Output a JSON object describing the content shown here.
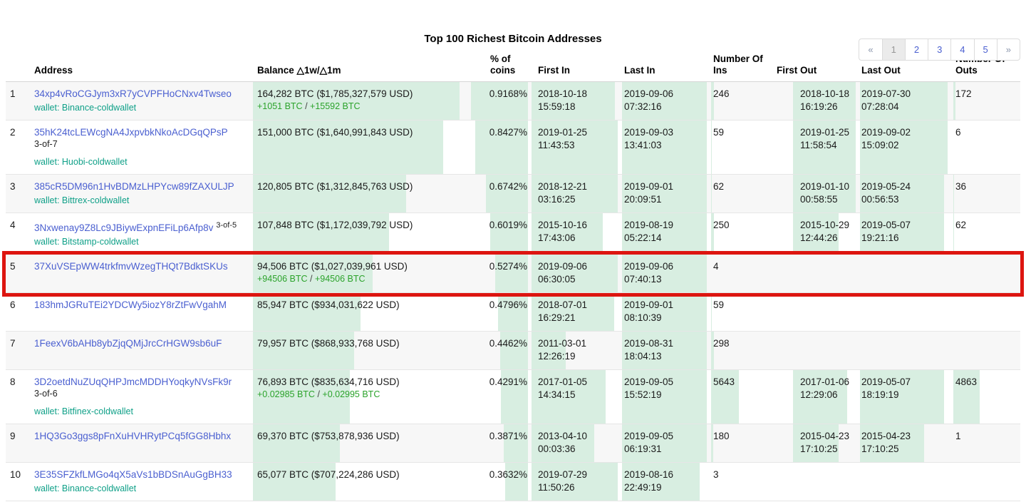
{
  "title": "Top 100 Richest Bitcoin Addresses",
  "labels": {
    "change_separator": " / "
  },
  "colors": {
    "link": "#4a5fd0",
    "teal": "#0fa088",
    "greentxt": "#2ba32b",
    "bar": "#d8eee1",
    "red": "#dd1510",
    "stripe": "#f7f7f7",
    "rowborder": "#e6e6e6",
    "headborder": "#d6d6d6",
    "pag-border": "#dcdcdc",
    "pag-active-bg": "#ebebeb",
    "pag-active-fg": "#969696",
    "pag-muted": "#8b97ad",
    "text": "#1a1a1a"
  },
  "pagination": {
    "items": [
      {
        "label": "«",
        "state": "muted"
      },
      {
        "label": "1",
        "state": "active"
      },
      {
        "label": "2",
        "state": ""
      },
      {
        "label": "3",
        "state": ""
      },
      {
        "label": "4",
        "state": ""
      },
      {
        "label": "5",
        "state": ""
      },
      {
        "label": "»",
        "state": "muted"
      }
    ]
  },
  "table": {
    "columns": [
      {
        "key": "rank",
        "label": ""
      },
      {
        "key": "address",
        "label": "Address"
      },
      {
        "key": "balance",
        "label": "Balance △1w/△1m"
      },
      {
        "key": "pct",
        "label": "% of coins"
      },
      {
        "key": "first_in",
        "label": "First In"
      },
      {
        "key": "last_in",
        "label": "Last In"
      },
      {
        "key": "ins",
        "label": "Number Of Ins"
      },
      {
        "key": "first_out",
        "label": "First Out"
      },
      {
        "key": "last_out",
        "label": "Last Out"
      },
      {
        "key": "outs",
        "label": "Number Of Outs"
      }
    ]
  },
  "rows": [
    {
      "rank": "1",
      "address": "34xp4vRoCGJym3xR7yCVPFHoCNxv4Twseo",
      "wallet": "wallet: Binance-coldwallet",
      "balance": "164,282 BTC ($1,785,327,579 USD)",
      "change_week": "+1051 BTC",
      "change_month": "+15592 BTC",
      "pct": "0.9168%",
      "first_in": {
        "d": "2018-10-18",
        "t": "15:59:18"
      },
      "last_in": {
        "d": "2019-09-06",
        "t": "07:32:16"
      },
      "ins": "246",
      "first_out": {
        "d": "2018-10-18",
        "t": "16:19:26"
      },
      "last_out": {
        "d": "2019-07-30",
        "t": "07:28:04"
      },
      "outs": "172",
      "bars": {
        "balance": 1,
        "pct": 1,
        "first_in": 0.97,
        "last_in": 1,
        "ins": 0.05,
        "first_out": 1,
        "last_out": 1,
        "outs": 0.04
      }
    },
    {
      "rank": "2",
      "address": "35hK24tcLEWcgNA4JxpvbkNkoAcDGqQPsP",
      "multisig": "3-of-7",
      "wallet": "wallet: Huobi-coldwallet",
      "balance": "151,000 BTC ($1,640,991,843 USD)",
      "pct": "0.8427%",
      "first_in": {
        "d": "2019-01-25",
        "t": "11:43:53"
      },
      "last_in": {
        "d": "2019-09-03",
        "t": "13:41:03"
      },
      "ins": "59",
      "first_out": {
        "d": "2019-01-25",
        "t": "11:58:54"
      },
      "last_out": {
        "d": "2019-09-02",
        "t": "15:09:02"
      },
      "outs": "6",
      "bars": {
        "balance": 0.92,
        "pct": 0.92,
        "first_in": 1,
        "last_in": 1,
        "ins": 0.012,
        "first_out": 1,
        "last_out": 1,
        "outs": 0
      }
    },
    {
      "rank": "3",
      "address": "385cR5DM96n1HvBDMzLHPYcw89fZAXULJP",
      "wallet": "wallet: Bittrex-coldwallet",
      "balance": "120,805 BTC ($1,312,845,763 USD)",
      "pct": "0.6742%",
      "first_in": {
        "d": "2018-12-21",
        "t": "03:16:25"
      },
      "last_in": {
        "d": "2019-09-01",
        "t": "20:09:51"
      },
      "ins": "62",
      "first_out": {
        "d": "2019-01-10",
        "t": "00:58:55"
      },
      "last_out": {
        "d": "2019-05-24",
        "t": "00:56:53"
      },
      "outs": "36",
      "bars": {
        "balance": 0.74,
        "pct": 0.74,
        "first_in": 1,
        "last_in": 1,
        "ins": 0.013,
        "first_out": 1,
        "last_out": 0.96,
        "outs": 0.01
      }
    },
    {
      "rank": "4",
      "address": "3Nxwenay9Z8Lc9JBiywExpnEFiLp6Afp8v",
      "multisig_inline": "3-of-5",
      "wallet": "wallet: Bitstamp-coldwallet",
      "balance": "107,848 BTC ($1,172,039,792 USD)",
      "pct": "0.6019%",
      "first_in": {
        "d": "2015-10-16",
        "t": "17:43:06"
      },
      "last_in": {
        "d": "2019-08-19",
        "t": "05:22:14"
      },
      "ins": "250",
      "first_out": {
        "d": "2015-10-29",
        "t": "12:44:26"
      },
      "last_out": {
        "d": "2019-05-07",
        "t": "19:21:16"
      },
      "outs": "62",
      "bars": {
        "balance": 0.66,
        "pct": 0.66,
        "first_in": 0.83,
        "last_in": 1,
        "ins": 0.05,
        "first_out": 0.73,
        "last_out": 0.96,
        "outs": 0.012
      }
    },
    {
      "rank": "5",
      "highlight": true,
      "address": "37XuVSEpWW4trkfmvWzegTHQt7BdktSKUs",
      "balance": "94,506 BTC ($1,027,039,961 USD)",
      "change_week": "+94506 BTC",
      "change_month": "+94506 BTC",
      "pct": "0.5274%",
      "first_in": {
        "d": "2019-09-06",
        "t": "06:30:05"
      },
      "last_in": {
        "d": "2019-09-06",
        "t": "07:40:13"
      },
      "ins": "4",
      "bars": {
        "balance": 0.58,
        "pct": 0.58,
        "first_in": 1,
        "last_in": 1,
        "ins": 0
      }
    },
    {
      "rank": "6",
      "address": "183hmJGRuTEi2YDCWy5iozY8rZtFwVgahM",
      "balance": "85,947 BTC ($934,031,622 USD)",
      "pct": "0.4796%",
      "first_in": {
        "d": "2018-07-01",
        "t": "16:29:21"
      },
      "last_in": {
        "d": "2019-09-01",
        "t": "08:10:39"
      },
      "ins": "59",
      "bars": {
        "balance": 0.52,
        "pct": 0.52,
        "first_in": 0.96,
        "last_in": 1,
        "ins": 0.012
      }
    },
    {
      "rank": "7",
      "address": "1FeexV6bAHb8ybZjqQMjJrcCrHGW9sb6uF",
      "balance": "79,957 BTC ($868,933,768 USD)",
      "pct": "0.4462%",
      "first_in": {
        "d": "2011-03-01",
        "t": "12:26:19"
      },
      "last_in": {
        "d": "2019-08-31",
        "t": "18:04:13"
      },
      "ins": "298",
      "bars": {
        "balance": 0.49,
        "pct": 0.49,
        "first_in": 0.4,
        "last_in": 1,
        "ins": 0.055
      }
    },
    {
      "rank": "8",
      "address": "3D2oetdNuZUqQHPJmcMDDHYoqkyNVsFk9r",
      "multisig": "3-of-6",
      "wallet": "wallet: Bitfinex-coldwallet",
      "balance": "76,893 BTC ($835,634,716 USD)",
      "change_week": "+0.02985 BTC",
      "change_month": "+0.02995 BTC",
      "pct": "0.4291%",
      "first_in": {
        "d": "2017-01-05",
        "t": "14:34:15"
      },
      "last_in": {
        "d": "2019-09-05",
        "t": "15:52:19"
      },
      "ins": "5643",
      "first_out": {
        "d": "2017-01-06",
        "t": "12:29:06"
      },
      "last_out": {
        "d": "2019-05-07",
        "t": "18:19:19"
      },
      "outs": "4863",
      "bars": {
        "balance": 0.47,
        "pct": 0.47,
        "first_in": 0.86,
        "last_in": 1,
        "ins": 0.48,
        "first_out": 0.86,
        "last_out": 0.96,
        "outs": 0.43
      }
    },
    {
      "rank": "9",
      "address": "1HQ3Go3ggs8pFnXuHVHRytPCq5fGG8Hbhx",
      "balance": "69,370 BTC ($753,878,936 USD)",
      "pct": "0.3871%",
      "first_in": {
        "d": "2013-04-10",
        "t": "00:03:36"
      },
      "last_in": {
        "d": "2019-09-05",
        "t": "06:19:31"
      },
      "ins": "180",
      "first_out": {
        "d": "2015-04-23",
        "t": "17:10:25"
      },
      "last_out": {
        "d": "2015-04-23",
        "t": "17:10:25"
      },
      "outs": "1",
      "bars": {
        "balance": 0.42,
        "pct": 0.42,
        "first_in": 0.73,
        "last_in": 1,
        "ins": 0.033,
        "first_out": 0.73,
        "last_out": 0.73,
        "outs": 0
      }
    },
    {
      "rank": "10",
      "address": "3E35SFZkfLMGo4qX5aVs1bBDSnAuGgBH33",
      "wallet": "wallet: Binance-coldwallet",
      "balance": "65,077 BTC ($707,224,286 USD)",
      "pct": "0.3632%",
      "first_in": {
        "d": "2019-07-29",
        "t": "11:50:26"
      },
      "last_in": {
        "d": "2019-08-16",
        "t": "22:49:19"
      },
      "ins": "3",
      "bars": {
        "balance": 0.4,
        "pct": 0.4,
        "first_in": 1,
        "last_in": 0.92,
        "ins": 0
      }
    }
  ]
}
